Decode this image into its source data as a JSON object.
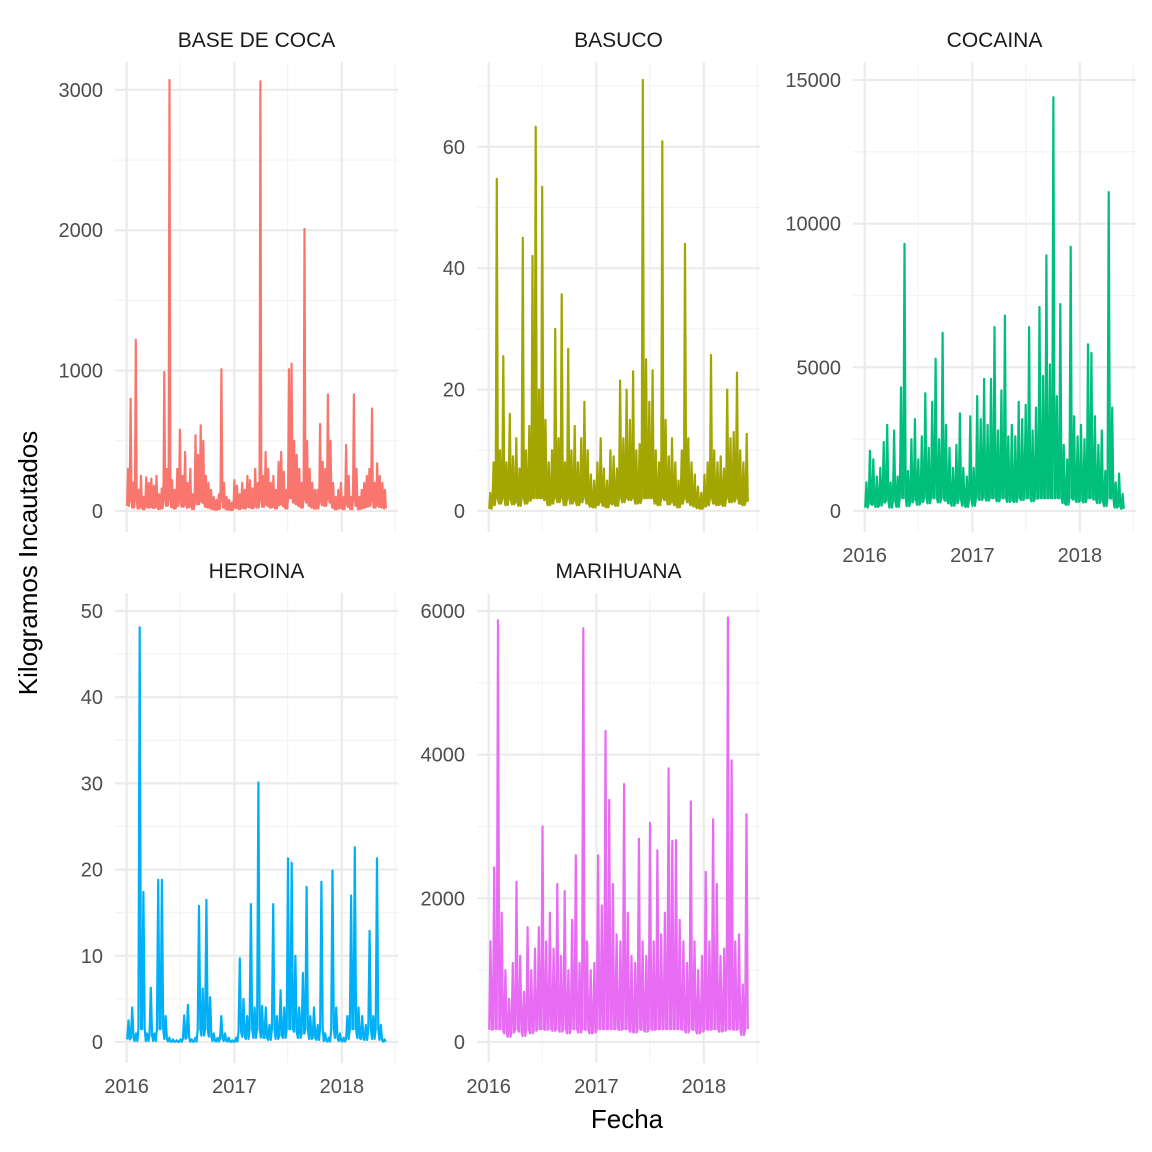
{
  "chart_data": {
    "type": "line",
    "xlabel": "Fecha",
    "ylabel": "Kilogramos Incautados",
    "x_range": [
      "2016-01-01",
      "2018-06-01"
    ],
    "x_ticks": [
      "2016",
      "2017",
      "2018"
    ],
    "grid": true,
    "legend": "none",
    "panels": [
      {
        "name": "BASE DE COCA",
        "color": "#F8766D",
        "ylim": [
          0,
          3070
        ],
        "y_ticks": [
          0,
          1000,
          2000,
          3000
        ],
        "values": [
          300,
          800,
          200,
          1220,
          150,
          250,
          100,
          240,
          200,
          230,
          180,
          250,
          120,
          160,
          990,
          300,
          3070,
          220,
          150,
          300,
          580,
          250,
          420,
          200,
          300,
          120,
          540,
          400,
          610,
          500,
          250,
          200,
          150,
          100,
          80,
          120,
          1010,
          200,
          100,
          80,
          60,
          220,
          180,
          120,
          200,
          150,
          250,
          220,
          160,
          300,
          200,
          3060,
          250,
          420,
          300,
          200,
          250,
          150,
          350,
          420,
          280,
          150,
          1010,
          1050,
          500,
          400,
          300,
          200,
          2010,
          500,
          300,
          200,
          150,
          150,
          620,
          350,
          300,
          830,
          500,
          200,
          100,
          150,
          200,
          100,
          470,
          250,
          100,
          830,
          300,
          100,
          150,
          200,
          250,
          300,
          730,
          200,
          340,
          250,
          200,
          150
        ]
      },
      {
        "name": "BASUCO",
        "color": "#A3A500",
        "ylim": [
          0,
          71
        ],
        "y_ticks": [
          0,
          20,
          40,
          60
        ],
        "values": [
          3,
          8,
          54.7,
          10,
          25.5,
          8,
          16,
          9,
          12,
          7,
          45,
          10,
          14,
          42,
          63.3,
          20,
          53.4,
          15,
          8,
          10,
          30,
          12,
          35.7,
          8,
          26.7,
          10,
          14,
          8,
          12,
          18,
          10,
          6,
          5,
          8,
          12,
          7,
          5,
          10,
          9,
          7,
          21.5,
          12,
          20,
          15,
          23,
          10,
          11,
          71,
          25,
          18,
          23.2,
          10,
          8,
          60.9,
          15,
          9,
          12,
          8,
          5,
          10,
          44,
          12,
          8,
          6,
          4,
          3,
          6,
          8,
          25.7,
          10,
          8,
          9,
          7,
          20,
          12,
          13,
          22.8,
          10,
          8,
          12.7
        ]
      },
      {
        "name": "COCAINA",
        "color": "#00BF7D",
        "ylim": [
          0,
          15000
        ],
        "y_ticks": [
          0,
          5000,
          10000,
          15000
        ],
        "values": [
          1000,
          2100,
          1800,
          1200,
          1500,
          2400,
          3000,
          1000,
          2800,
          1200,
          4300,
          9300,
          1400,
          2500,
          3200,
          1800,
          2600,
          4100,
          2200,
          3800,
          5300,
          2500,
          6200,
          3000,
          2200,
          1500,
          2300,
          3400,
          1500,
          1200,
          3300,
          1500,
          4000,
          3200,
          4600,
          3000,
          4600,
          6400,
          2800,
          4200,
          6800,
          2600,
          3000,
          2600,
          3800,
          3200,
          3700,
          6400,
          2800,
          3600,
          7100,
          4700,
          8900,
          5100,
          14400,
          4000,
          7200,
          2300,
          1800,
          9200,
          3300,
          2600,
          3000,
          2500,
          5800,
          5500,
          3300,
          2300,
          2800,
          1400,
          11100,
          3600,
          1000,
          1300,
          600
        ]
      },
      {
        "name": "HEROINA",
        "color": "#00B0F6",
        "ylim": [
          0,
          50
        ],
        "y_ticks": [
          0,
          10,
          20,
          30,
          40,
          50
        ],
        "values": [
          2.5,
          4,
          1,
          48.1,
          17.4,
          1,
          6.3,
          1,
          18.8,
          18.8,
          3,
          0.5,
          0.3,
          0.2,
          0.3,
          3.1,
          4.3,
          0.3,
          0.5,
          15.8,
          6.2,
          16.5,
          5.2,
          1,
          0.5,
          3,
          1,
          0.5,
          0.2,
          0.5,
          9.7,
          5,
          3,
          16,
          4,
          30.1,
          4.2,
          4,
          2,
          16,
          3,
          6,
          4,
          21.3,
          20.8,
          10,
          4,
          8,
          18,
          3,
          4,
          2,
          18.6,
          1,
          0.5,
          19.9,
          4,
          1,
          0.5,
          3,
          17,
          22.6,
          4,
          3,
          2,
          12.9,
          3,
          21.3,
          2,
          0.3
        ]
      },
      {
        "name": "MARIHUANA",
        "color": "#E76BF3",
        "ylim": [
          0,
          6000
        ],
        "y_ticks": [
          0,
          2000,
          4000,
          6000
        ],
        "values": [
          1400,
          2430,
          5870,
          1800,
          1000,
          600,
          1100,
          2230,
          1200,
          700,
          1600,
          1000,
          1300,
          1600,
          3000,
          1400,
          1800,
          1300,
          2200,
          1200,
          2100,
          1000,
          1700,
          2600,
          1100,
          5760,
          1400,
          1000,
          1100,
          2600,
          1900,
          4330,
          3370,
          2200,
          1500,
          1400,
          3590,
          1800,
          1200,
          1100,
          2830,
          1400,
          1200,
          3050,
          1400,
          2670,
          1500,
          1800,
          3810,
          2800,
          2810,
          1700,
          1400,
          1100,
          3350,
          1400,
          1000,
          1200,
          2370,
          1400,
          3100,
          2200,
          1200,
          1300,
          5910,
          3920,
          1400,
          1500,
          800,
          3170
        ]
      }
    ]
  }
}
